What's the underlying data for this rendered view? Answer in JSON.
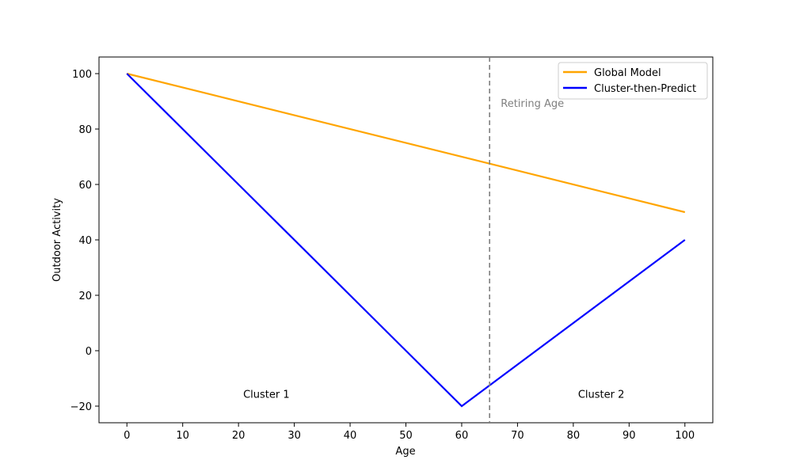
{
  "chart_data": {
    "type": "line",
    "xlabel": "Age",
    "ylabel": "Outdoor Activity",
    "xlim": [
      -5,
      105
    ],
    "ylim": [
      -26,
      106
    ],
    "xticks": [
      0,
      10,
      20,
      30,
      40,
      50,
      60,
      70,
      80,
      90,
      100
    ],
    "yticks": [
      -20,
      0,
      20,
      40,
      60,
      80,
      100
    ],
    "xtick_labels": [
      "0",
      "10",
      "20",
      "30",
      "40",
      "50",
      "60",
      "70",
      "80",
      "90",
      "100"
    ],
    "ytick_labels": [
      "−20",
      "0",
      "20",
      "40",
      "60",
      "80",
      "100"
    ],
    "grid": false,
    "legend_position": "upper-right",
    "series": [
      {
        "name": "Global Model",
        "color": "#ffa500",
        "x": [
          0,
          100
        ],
        "y": [
          100,
          50
        ]
      },
      {
        "name": "Cluster-then-Predict",
        "color": "#0000ff",
        "x": [
          0,
          60,
          100
        ],
        "y": [
          100,
          -20,
          40
        ]
      }
    ],
    "reference_line": {
      "axis": "x",
      "value": 65,
      "color": "#808080",
      "style": "dashed"
    },
    "annotations": [
      {
        "text": "Retiring Age",
        "x": 67,
        "y": 88,
        "color": "#808080"
      },
      {
        "text": "Cluster 1",
        "x": 25,
        "y": -17,
        "color": "#000000"
      },
      {
        "text": "Cluster 2",
        "x": 85,
        "y": -17,
        "color": "#000000"
      }
    ]
  }
}
